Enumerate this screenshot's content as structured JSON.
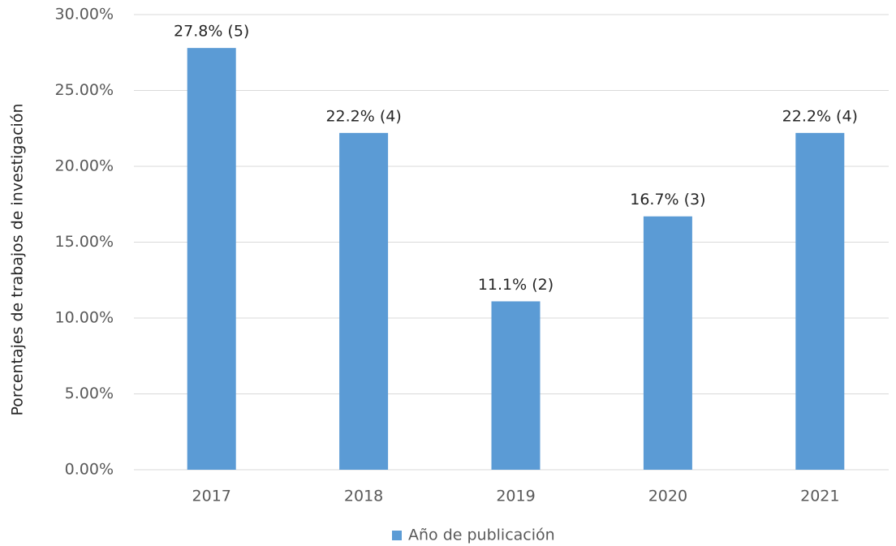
{
  "chart_data": {
    "type": "bar",
    "ylabel": "Porcentajes de trabajos de investigación",
    "categories": [
      "2017",
      "2018",
      "2019",
      "2020",
      "2021"
    ],
    "series": [
      {
        "name": "Año de publicación",
        "color": "#5b9bd5",
        "values": [
          27.8,
          22.2,
          11.1,
          16.7,
          22.2
        ],
        "value_labels": [
          "27.8% (5)",
          "22.2% (4)",
          "11.1% (2)",
          "16.7% (3)",
          "22.2% (4)"
        ]
      }
    ],
    "ylim": [
      0,
      30
    ],
    "yticks": [
      {
        "value": 0,
        "label": "0.00%"
      },
      {
        "value": 5,
        "label": "5.00%"
      },
      {
        "value": 10,
        "label": "10.00%"
      },
      {
        "value": 15,
        "label": "15.00%"
      },
      {
        "value": 20,
        "label": "20.00%"
      },
      {
        "value": 25,
        "label": "25.00%"
      },
      {
        "value": 30,
        "label": "30.00%"
      }
    ],
    "grid": true,
    "legend": "bottom"
  }
}
